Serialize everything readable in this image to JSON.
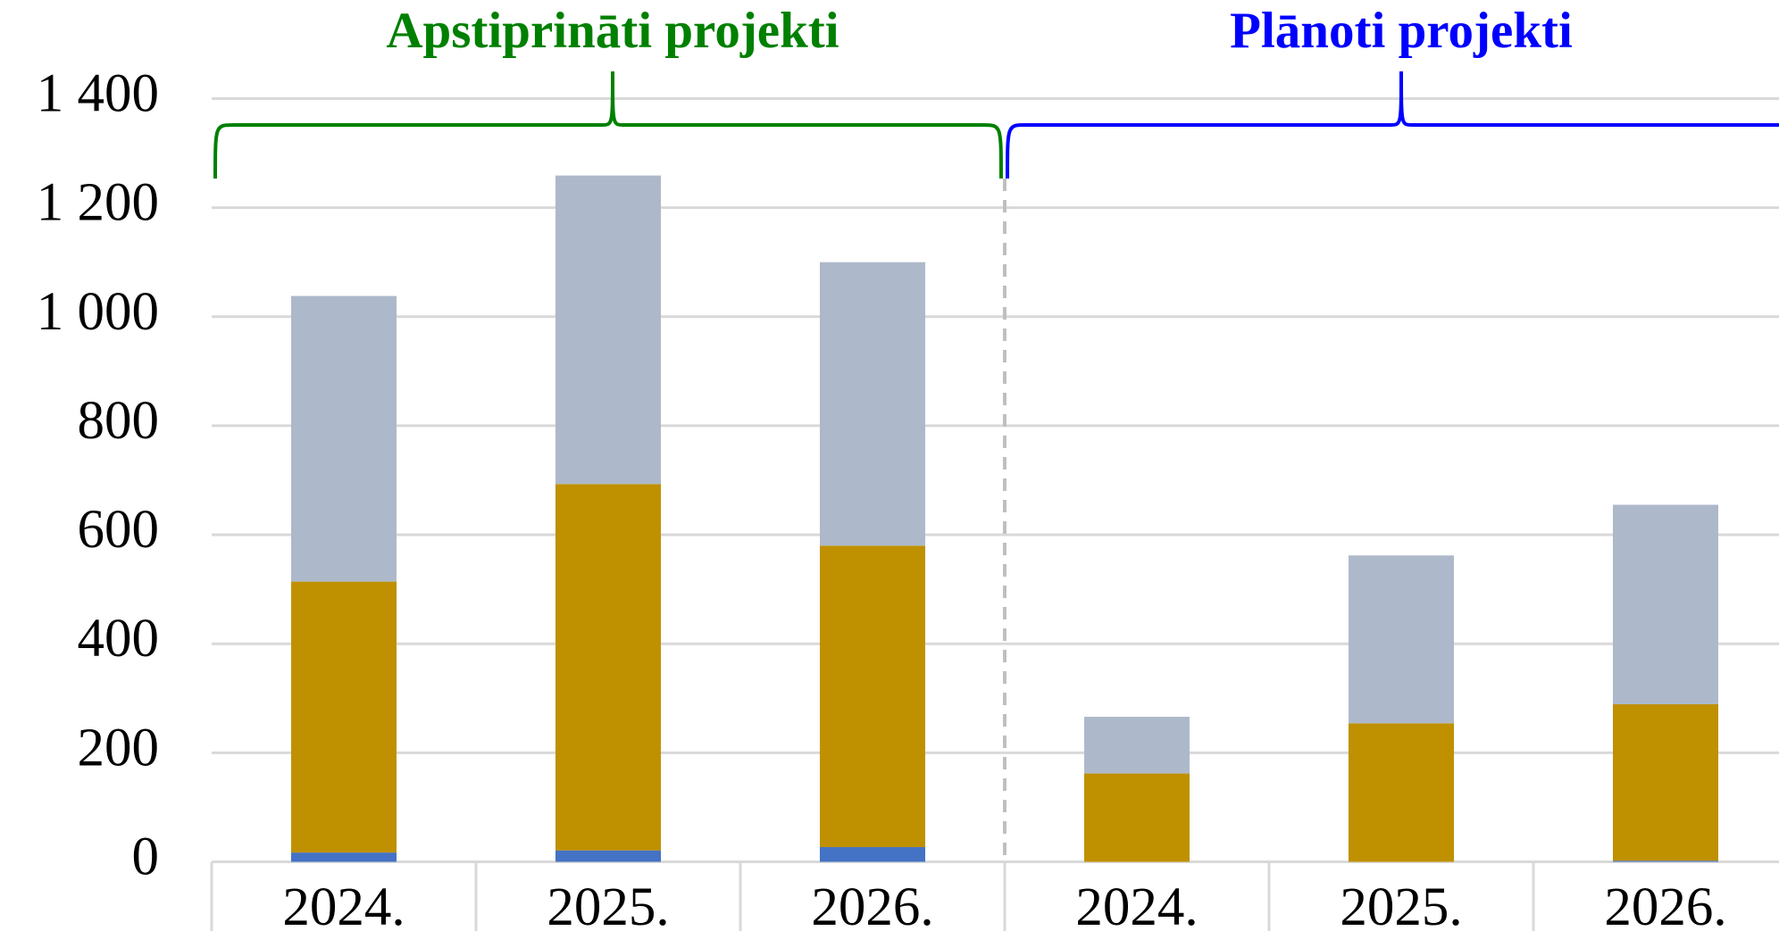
{
  "chart_data": {
    "type": "bar",
    "stacked": true,
    "groups": [
      {
        "label": "Apstiprināti projekti",
        "color": "#008000"
      },
      {
        "label": "Plānoti projekti",
        "color": "#0000ff"
      }
    ],
    "categories": [
      "2024.",
      "2025.",
      "2026.",
      "2024.",
      "2025.",
      "2026."
    ],
    "series": [
      {
        "color": "#4472c4",
        "values": [
          17,
          21,
          27,
          0,
          0,
          2
        ]
      },
      {
        "color": "#bf9000",
        "values": [
          497,
          672,
          553,
          162,
          254,
          287
        ]
      },
      {
        "color": "#adb9ca",
        "values": [
          524,
          566,
          520,
          104,
          308,
          366
        ]
      }
    ],
    "ylim": [
      0,
      1400
    ],
    "yticks": [
      0,
      200,
      400,
      600,
      800,
      {
        "value": 1000,
        "label": "1 000"
      },
      {
        "value": 1200,
        "label": "1 200"
      },
      {
        "value": 1400,
        "label": "1 400"
      }
    ],
    "grid": true
  }
}
